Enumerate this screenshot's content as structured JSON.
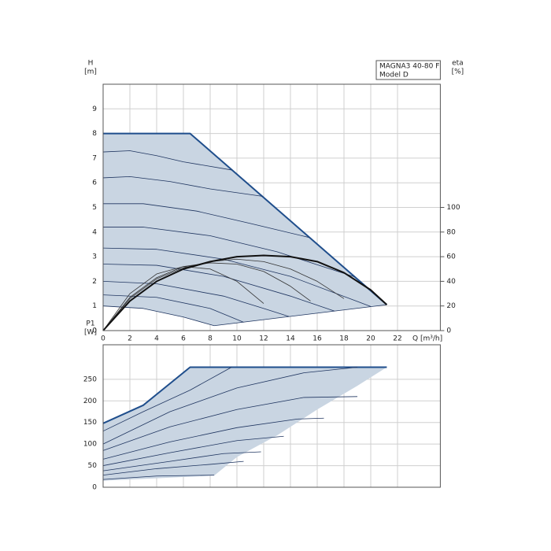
{
  "chart_data": [
    {
      "type": "line",
      "ylabel": [
        "H",
        "[m]"
      ],
      "y2label": [
        "eta",
        "[%]"
      ],
      "xlabel": "Q [m³/h]",
      "annotation": [
        "MAGNA3 40-80 F",
        "Model D"
      ],
      "xlim": [
        0,
        25.2
      ],
      "xticks": [
        0,
        2,
        4,
        6,
        8,
        10,
        12,
        14,
        16,
        18,
        20,
        22
      ],
      "ylim": [
        0,
        10
      ],
      "yticks": [
        0,
        1,
        2,
        3,
        4,
        5,
        6,
        7,
        8,
        9
      ],
      "y2lim": [
        0,
        200
      ],
      "y2ticks": [
        0,
        20,
        40,
        60,
        80,
        100
      ],
      "grid": true,
      "region": {
        "color": "#c9d5e2",
        "x": [
          0,
          6.5,
          21.2,
          8.3,
          6,
          3,
          0
        ],
        "y": [
          8,
          8,
          1.05,
          0.2,
          0.55,
          0.9,
          1.0
        ]
      },
      "series": [
        {
          "color": "#1f4e8c",
          "width": 2,
          "x": [
            0,
            6.5,
            21.2
          ],
          "y": [
            8,
            8,
            1.05
          ]
        },
        {
          "color": "#1f3560",
          "width": 0.8,
          "x": [
            0,
            2,
            4,
            6,
            9.6
          ],
          "y": [
            7.25,
            7.3,
            7.1,
            6.85,
            6.52
          ]
        },
        {
          "color": "#1f3560",
          "width": 0.8,
          "x": [
            0,
            2,
            5,
            8,
            11.9
          ],
          "y": [
            6.2,
            6.25,
            6.05,
            5.75,
            5.45
          ]
        },
        {
          "color": "#1f3560",
          "width": 0.8,
          "x": [
            0,
            3,
            7,
            11,
            15.4
          ],
          "y": [
            5.15,
            5.15,
            4.85,
            4.35,
            3.78
          ]
        },
        {
          "color": "#1f3560",
          "width": 0.8,
          "x": [
            0,
            3,
            8,
            13,
            18.8
          ],
          "y": [
            4.2,
            4.2,
            3.85,
            3.2,
            2.18
          ]
        },
        {
          "color": "#1f3560",
          "width": 0.8,
          "x": [
            0,
            4,
            9,
            14,
            20
          ],
          "y": [
            3.35,
            3.3,
            2.9,
            2.2,
            0.98
          ]
        },
        {
          "color": "#1f3560",
          "width": 0.8,
          "x": [
            0,
            4,
            9,
            14,
            17.3
          ],
          "y": [
            2.7,
            2.65,
            2.2,
            1.4,
            0.79
          ]
        },
        {
          "color": "#1f3560",
          "width": 0.8,
          "x": [
            0,
            4,
            9,
            12,
            13.9
          ],
          "y": [
            2.0,
            1.9,
            1.4,
            0.9,
            0.57
          ]
        },
        {
          "color": "#1f3560",
          "width": 0.8,
          "x": [
            0,
            4,
            8,
            10.5
          ],
          "y": [
            1.45,
            1.35,
            0.9,
            0.34
          ]
        },
        {
          "color": "#1f3560",
          "width": 0.8,
          "x": [
            0,
            3,
            6,
            8.3
          ],
          "y": [
            1.0,
            0.9,
            0.55,
            0.2
          ]
        },
        {
          "color": "#1f3560",
          "width": 0.8,
          "x": [
            8.3,
            21.2
          ],
          "y": [
            0.2,
            1.05
          ]
        },
        {
          "color": "#333333",
          "width": 0.8,
          "axis": "y2",
          "x": [
            0,
            2,
            4,
            6,
            8,
            10,
            12
          ],
          "y": [
            0,
            30,
            46,
            52,
            50,
            40,
            22
          ]
        },
        {
          "color": "#333333",
          "width": 0.8,
          "axis": "y2",
          "x": [
            0,
            2,
            4,
            6,
            8,
            10,
            12,
            14,
            15.5
          ],
          "y": [
            0,
            27,
            43,
            52,
            55,
            54,
            48,
            36,
            24
          ]
        },
        {
          "color": "#333333",
          "width": 0.8,
          "axis": "y2",
          "x": [
            0,
            2,
            4,
            6,
            8,
            10,
            12,
            14,
            16,
            18
          ],
          "y": [
            0,
            26,
            42,
            51,
            56,
            58,
            56,
            50,
            40,
            26
          ]
        },
        {
          "color": "#111111",
          "width": 2,
          "axis": "y2",
          "x": [
            0,
            2,
            4,
            6,
            8,
            10,
            12,
            14,
            16,
            18,
            20,
            21.2
          ],
          "y": [
            0,
            24,
            40,
            50,
            56,
            60,
            61,
            60,
            56,
            47,
            33,
            21
          ]
        }
      ]
    },
    {
      "type": "line",
      "ylabel": [
        "P1",
        "[W]"
      ],
      "xlim": [
        0,
        25.2
      ],
      "ylim": [
        0,
        330
      ],
      "yticks": [
        0,
        50,
        100,
        150,
        200,
        250
      ],
      "grid": true,
      "region": {
        "color": "#c9d5e2",
        "x": [
          0,
          3,
          6.5,
          21.2,
          19,
          16,
          13,
          10,
          8.3,
          0
        ],
        "y": [
          148,
          190,
          278,
          278,
          235,
          180,
          120,
          70,
          27,
          15
        ]
      },
      "series": [
        {
          "color": "#1f4e8c",
          "width": 2,
          "x": [
            0,
            3,
            6.5,
            21.2
          ],
          "y": [
            148,
            190,
            278,
            278
          ]
        },
        {
          "color": "#1f3560",
          "width": 0.8,
          "x": [
            0,
            3,
            6.5,
            9.6
          ],
          "y": [
            130,
            175,
            225,
            278
          ]
        },
        {
          "color": "#1f3560",
          "width": 0.8,
          "x": [
            0,
            5,
            10,
            15,
            19
          ],
          "y": [
            100,
            175,
            230,
            265,
            278
          ]
        },
        {
          "color": "#1f3560",
          "width": 0.8,
          "x": [
            0,
            5,
            10,
            15,
            19
          ],
          "y": [
            85,
            140,
            180,
            208,
            210
          ]
        },
        {
          "color": "#1f3560",
          "width": 0.8,
          "x": [
            0,
            5,
            10,
            14.5,
            16.5
          ],
          "y": [
            65,
            105,
            138,
            158,
            160
          ]
        },
        {
          "color": "#1f3560",
          "width": 0.8,
          "x": [
            0,
            5,
            10,
            13.5
          ],
          "y": [
            50,
            80,
            108,
            118
          ]
        },
        {
          "color": "#1f3560",
          "width": 0.8,
          "x": [
            0,
            5,
            9,
            11.8
          ],
          "y": [
            38,
            60,
            78,
            82
          ]
        },
        {
          "color": "#1f3560",
          "width": 0.8,
          "x": [
            0,
            4,
            8,
            10.5
          ],
          "y": [
            28,
            43,
            53,
            60
          ]
        },
        {
          "color": "#1f3560",
          "width": 0.8,
          "x": [
            0,
            4,
            8.3
          ],
          "y": [
            18,
            26,
            28
          ]
        }
      ]
    }
  ]
}
